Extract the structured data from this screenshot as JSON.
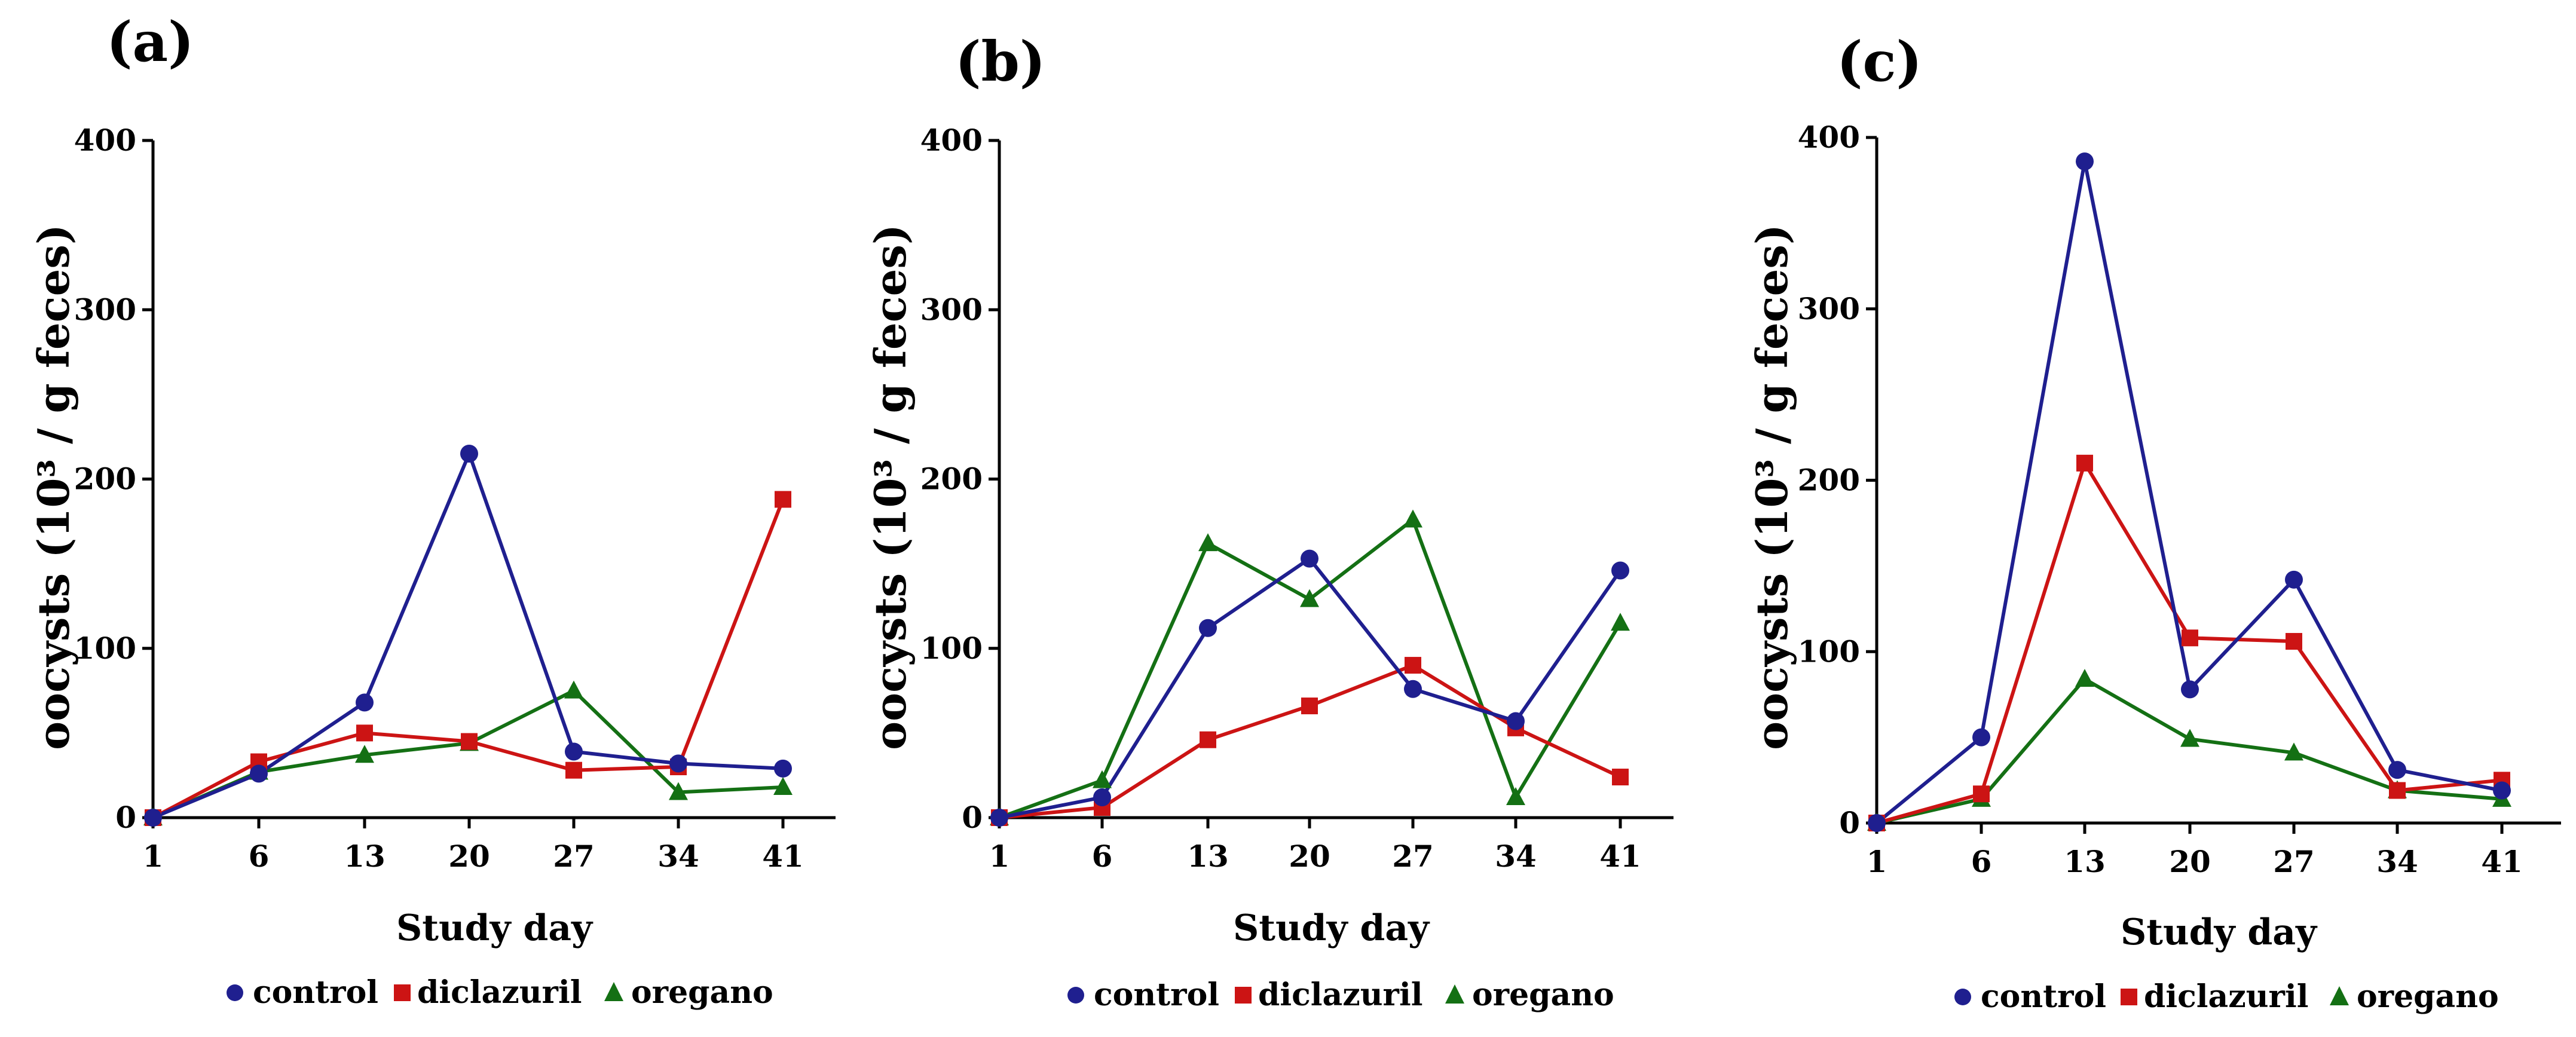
{
  "colors": {
    "control": "#1f1f8f",
    "diclazuril": "#cc1414",
    "oregano": "#147014"
  },
  "chart_data": [
    {
      "type": "line",
      "panel_label": "(a)",
      "title": "",
      "xlabel": "Study day",
      "ylabel": "oocysts (10³ / g feces)",
      "categories": [
        "1",
        "6",
        "13",
        "20",
        "27",
        "34",
        "41"
      ],
      "ylim": [
        0,
        400
      ],
      "yticks": [
        "0",
        "100",
        "200",
        "300",
        "400"
      ],
      "series": [
        {
          "name": "control",
          "marker": "circle",
          "values": [
            0,
            26,
            68,
            215,
            39,
            32,
            29
          ]
        },
        {
          "name": "diclazuril",
          "marker": "square",
          "values": [
            0,
            33,
            50,
            45,
            28,
            30,
            188
          ]
        },
        {
          "name": "oregano",
          "marker": "triangle",
          "values": [
            0,
            27,
            37,
            44,
            75,
            15,
            18
          ]
        }
      ],
      "legend": {
        "entries": [
          "control",
          "diclazuril",
          "oregano"
        ],
        "position": "bottom"
      }
    },
    {
      "type": "line",
      "panel_label": "(b)",
      "title": "",
      "xlabel": "Study day",
      "ylabel": "oocysts (10³ / g feces)",
      "categories": [
        "1",
        "6",
        "13",
        "20",
        "27",
        "34",
        "41"
      ],
      "ylim": [
        0,
        400
      ],
      "yticks": [
        "0",
        "100",
        "200",
        "300",
        "400"
      ],
      "series": [
        {
          "name": "control",
          "marker": "circle",
          "values": [
            0,
            12,
            112,
            153,
            76,
            57,
            146
          ]
        },
        {
          "name": "diclazuril",
          "marker": "square",
          "values": [
            0,
            6,
            46,
            66,
            90,
            53,
            24
          ]
        },
        {
          "name": "oregano",
          "marker": "triangle",
          "values": [
            0,
            22,
            162,
            129,
            176,
            12,
            115
          ]
        }
      ],
      "legend": {
        "entries": [
          "control",
          "diclazuril",
          "oregano"
        ],
        "position": "bottom"
      }
    },
    {
      "type": "line",
      "panel_label": "(c)",
      "title": "",
      "xlabel": "Study day",
      "ylabel": "oocysts (10³ / g feces)",
      "categories": [
        "1",
        "6",
        "13",
        "20",
        "27",
        "34",
        "41"
      ],
      "ylim": [
        0,
        400
      ],
      "yticks": [
        "0",
        "100",
        "200",
        "300",
        "400"
      ],
      "series": [
        {
          "name": "control",
          "marker": "circle",
          "values": [
            0,
            50,
            386,
            78,
            142,
            31,
            19
          ]
        },
        {
          "name": "diclazuril",
          "marker": "square",
          "values": [
            0,
            17,
            210,
            108,
            106,
            19,
            25
          ]
        },
        {
          "name": "oregano",
          "marker": "triangle",
          "values": [
            0,
            14,
            84,
            49,
            41,
            19,
            14
          ]
        }
      ],
      "legend": {
        "entries": [
          "control",
          "diclazuril",
          "oregano"
        ],
        "position": "bottom"
      }
    }
  ]
}
